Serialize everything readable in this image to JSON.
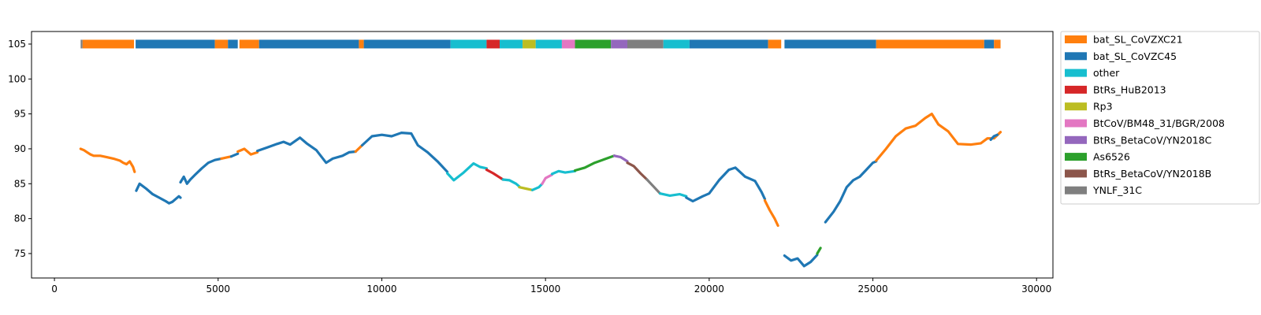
{
  "chart_data": {
    "type": "scatter",
    "title": "",
    "xlabel": "",
    "ylabel": "",
    "xlim": [
      -700,
      30500
    ],
    "ylim": [
      71.5,
      106.8
    ],
    "xticks": [
      0,
      5000,
      10000,
      15000,
      20000,
      25000,
      30000
    ],
    "yticks": [
      75,
      80,
      85,
      90,
      95,
      100,
      105
    ],
    "grid": false,
    "legend_position": "top-right outside",
    "legend": [
      {
        "name": "bat_SL_CoVZXC21",
        "color": "#ff7f0e"
      },
      {
        "name": "bat_SL_CoVZC45",
        "color": "#1f77b4"
      },
      {
        "name": "other",
        "color": "#17becf"
      },
      {
        "name": "BtRs_HuB2013",
        "color": "#d62728"
      },
      {
        "name": "Rp3",
        "color": "#bcbd22"
      },
      {
        "name": "BtCoV/BM48_31/BGR/2008",
        "color": "#e377c2"
      },
      {
        "name": "BtRs_BetaCoV/YN2018C",
        "color": "#9467bd"
      },
      {
        "name": "As6526",
        "color": "#2ca02c"
      },
      {
        "name": "BtRs_BetaCoV/YN2018B",
        "color": "#8c564b"
      },
      {
        "name": "YNLF_31C",
        "color": "#7f7f7f"
      }
    ],
    "color_bar_y": 105,
    "segments": [
      {
        "x0": 800,
        "x1": 860,
        "series": "YNLF_31C"
      },
      {
        "x0": 860,
        "x1": 2430,
        "series": "bat_SL_CoVZXC21"
      },
      {
        "x0": 2480,
        "x1": 4900,
        "series": "bat_SL_CoVZC45"
      },
      {
        "x0": 4900,
        "x1": 5300,
        "series": "bat_SL_CoVZXC21"
      },
      {
        "x0": 5300,
        "x1": 5600,
        "series": "bat_SL_CoVZC45"
      },
      {
        "x0": 5650,
        "x1": 6250,
        "series": "bat_SL_CoVZXC21"
      },
      {
        "x0": 6250,
        "x1": 9300,
        "series": "bat_SL_CoVZC45"
      },
      {
        "x0": 9300,
        "x1": 9450,
        "series": "bat_SL_CoVZXC21"
      },
      {
        "x0": 9450,
        "x1": 12100,
        "series": "bat_SL_CoVZC45"
      },
      {
        "x0": 12100,
        "x1": 13200,
        "series": "other"
      },
      {
        "x0": 13200,
        "x1": 13600,
        "series": "BtRs_HuB2013"
      },
      {
        "x0": 13600,
        "x1": 14300,
        "series": "other"
      },
      {
        "x0": 14300,
        "x1": 14700,
        "series": "Rp3"
      },
      {
        "x0": 14700,
        "x1": 15500,
        "series": "other"
      },
      {
        "x0": 15500,
        "x1": 15900,
        "series": "BtCoV/BM48_31/BGR/2008"
      },
      {
        "x0": 15900,
        "x1": 17000,
        "series": "As6526"
      },
      {
        "x0": 17000,
        "x1": 17500,
        "series": "BtRs_BetaCoV/YN2018C"
      },
      {
        "x0": 17500,
        "x1": 18600,
        "series": "YNLF_31C"
      },
      {
        "x0": 18600,
        "x1": 19400,
        "series": "other"
      },
      {
        "x0": 19400,
        "x1": 21800,
        "series": "bat_SL_CoVZC45"
      },
      {
        "x0": 21800,
        "x1": 22200,
        "series": "bat_SL_CoVZXC21"
      },
      {
        "x0": 22300,
        "x1": 25100,
        "series": "bat_SL_CoVZC45"
      },
      {
        "x0": 25100,
        "x1": 28400,
        "series": "bat_SL_CoVZXC21"
      },
      {
        "x0": 28400,
        "x1": 28700,
        "series": "bat_SL_CoVZC45"
      },
      {
        "x0": 28700,
        "x1": 28900,
        "series": "bat_SL_CoVZXC21"
      }
    ],
    "lines": [
      {
        "series": "bat_SL_CoVZXC21",
        "x": [
          800,
          900,
          1000,
          1100,
          1200,
          1400,
          1600,
          1800,
          2000,
          2100,
          2200,
          2300,
          2400,
          2450
        ],
        "y": [
          90.0,
          89.8,
          89.5,
          89.2,
          89.0,
          89.0,
          88.8,
          88.6,
          88.3,
          88.0,
          87.8,
          88.2,
          87.4,
          86.7
        ]
      },
      {
        "series": "bat_SL_CoVZC45",
        "x": [
          2500,
          2600,
          2800,
          3000,
          3200,
          3400,
          3500,
          3600,
          3700,
          3800,
          3850
        ],
        "y": [
          84.0,
          85.0,
          84.3,
          83.5,
          83.0,
          82.5,
          82.2,
          82.4,
          82.8,
          83.2,
          83.0
        ]
      },
      {
        "series": "bat_SL_CoVZC45",
        "x": [
          3850,
          3950,
          4050,
          4150,
          4300,
          4500,
          4700,
          4900,
          5100
        ],
        "y": [
          85.2,
          86.0,
          85.0,
          85.6,
          86.3,
          87.2,
          88.0,
          88.4,
          88.6
        ]
      },
      {
        "series": "bat_SL_CoVZXC21",
        "x": [
          5100,
          5300,
          5400
        ],
        "y": [
          88.6,
          88.8,
          88.9
        ]
      },
      {
        "series": "bat_SL_CoVZC45",
        "x": [
          5400,
          5600
        ],
        "y": [
          88.9,
          89.3
        ]
      },
      {
        "series": "bat_SL_CoVZXC21",
        "x": [
          5600,
          5800,
          6000,
          6200
        ],
        "y": [
          89.6,
          90.0,
          89.2,
          89.5
        ]
      },
      {
        "series": "bat_SL_CoVZC45",
        "x": [
          6200,
          6500,
          6800,
          7000,
          7200,
          7500,
          7700,
          8000,
          8300,
          8500,
          8800,
          9000,
          9200
        ],
        "y": [
          89.7,
          90.2,
          90.7,
          91.0,
          90.6,
          91.6,
          90.8,
          89.8,
          88.0,
          88.6,
          89.0,
          89.5,
          89.6
        ]
      },
      {
        "series": "bat_SL_CoVZXC21",
        "x": [
          9200,
          9400
        ],
        "y": [
          89.6,
          90.5
        ]
      },
      {
        "series": "bat_SL_CoVZC45",
        "x": [
          9400,
          9700,
          10000,
          10300,
          10600,
          10900,
          11100,
          11400,
          11700,
          12000
        ],
        "y": [
          90.5,
          91.8,
          92.0,
          91.8,
          92.3,
          92.2,
          90.5,
          89.5,
          88.2,
          86.7
        ]
      },
      {
        "series": "other",
        "x": [
          12000,
          12200,
          12500,
          12800,
          13000,
          13200
        ],
        "y": [
          86.5,
          85.5,
          86.6,
          87.9,
          87.4,
          87.2
        ]
      },
      {
        "series": "BtRs_HuB2013",
        "x": [
          13200,
          13400,
          13600,
          13700
        ],
        "y": [
          87.0,
          86.5,
          85.9,
          85.6
        ]
      },
      {
        "series": "other",
        "x": [
          13700,
          13900,
          14100,
          14200
        ],
        "y": [
          85.6,
          85.5,
          85.0,
          84.6
        ]
      },
      {
        "series": "Rp3",
        "x": [
          14200,
          14400,
          14600
        ],
        "y": [
          84.5,
          84.3,
          84.1
        ]
      },
      {
        "series": "other",
        "x": [
          14600,
          14800,
          14900
        ],
        "y": [
          84.1,
          84.5,
          85.0
        ]
      },
      {
        "series": "BtCoV/BM48_31/BGR/2008",
        "x": [
          14900,
          15000,
          15200
        ],
        "y": [
          85.0,
          85.8,
          86.3
        ]
      },
      {
        "series": "other",
        "x": [
          15200,
          15400,
          15600,
          15900
        ],
        "y": [
          86.4,
          86.8,
          86.6,
          86.8
        ]
      },
      {
        "series": "As6526",
        "x": [
          15900,
          16200,
          16500,
          16800,
          17100
        ],
        "y": [
          86.9,
          87.3,
          88.0,
          88.5,
          89.0
        ]
      },
      {
        "series": "BtRs_BetaCoV/YN2018C",
        "x": [
          17100,
          17300,
          17500
        ],
        "y": [
          89.0,
          88.8,
          88.2
        ]
      },
      {
        "series": "BtRs_BetaCoV/YN2018B",
        "x": [
          17500,
          17700,
          17900,
          18100
        ],
        "y": [
          88.0,
          87.5,
          86.5,
          85.6
        ]
      },
      {
        "series": "YNLF_31C",
        "x": [
          18100,
          18300,
          18500
        ],
        "y": [
          85.6,
          84.6,
          83.6
        ]
      },
      {
        "series": "other",
        "x": [
          18500,
          18800,
          19100,
          19300
        ],
        "y": [
          83.6,
          83.3,
          83.5,
          83.2
        ]
      },
      {
        "series": "bat_SL_CoVZC45",
        "x": [
          19300,
          19500,
          19800,
          20000,
          20300,
          20600,
          20800,
          21100,
          21400,
          21600,
          21700
        ],
        "y": [
          83.0,
          82.5,
          83.2,
          83.6,
          85.5,
          87.0,
          87.3,
          86.0,
          85.4,
          83.8,
          82.8
        ]
      },
      {
        "series": "bat_SL_CoVZXC21",
        "x": [
          21700,
          21850,
          22000,
          22100
        ],
        "y": [
          82.6,
          81.2,
          80.0,
          79.0
        ]
      },
      {
        "series": "bat_SL_CoVZC45",
        "x": [
          22300,
          22500,
          22700,
          22900,
          23100,
          23300
        ],
        "y": [
          74.7,
          74.0,
          74.3,
          73.2,
          73.8,
          74.8
        ]
      },
      {
        "series": "As6526",
        "x": [
          23300,
          23400
        ],
        "y": [
          75.0,
          75.8
        ]
      },
      {
        "series": "bat_SL_CoVZC45",
        "x": [
          23550,
          23800,
          24000,
          24200,
          24400,
          24600,
          24800,
          25000,
          25100
        ],
        "y": [
          79.5,
          81.0,
          82.5,
          84.5,
          85.5,
          86.0,
          87.0,
          88.0,
          88.2
        ]
      },
      {
        "series": "bat_SL_CoVZXC21",
        "x": [
          25100,
          25400,
          25700,
          26000,
          26300,
          26600,
          26800,
          27000,
          27300,
          27600,
          28000,
          28300,
          28500,
          28700,
          28900
        ],
        "y": [
          88.3,
          90.0,
          91.8,
          92.9,
          93.3,
          94.4,
          95.0,
          93.5,
          92.5,
          90.7,
          90.6,
          90.8,
          91.5,
          91.5,
          92.4
        ]
      },
      {
        "series": "bat_SL_CoVZC45",
        "x": [
          28600,
          28700,
          28800
        ],
        "y": [
          91.3,
          91.8,
          92.0
        ]
      }
    ]
  }
}
